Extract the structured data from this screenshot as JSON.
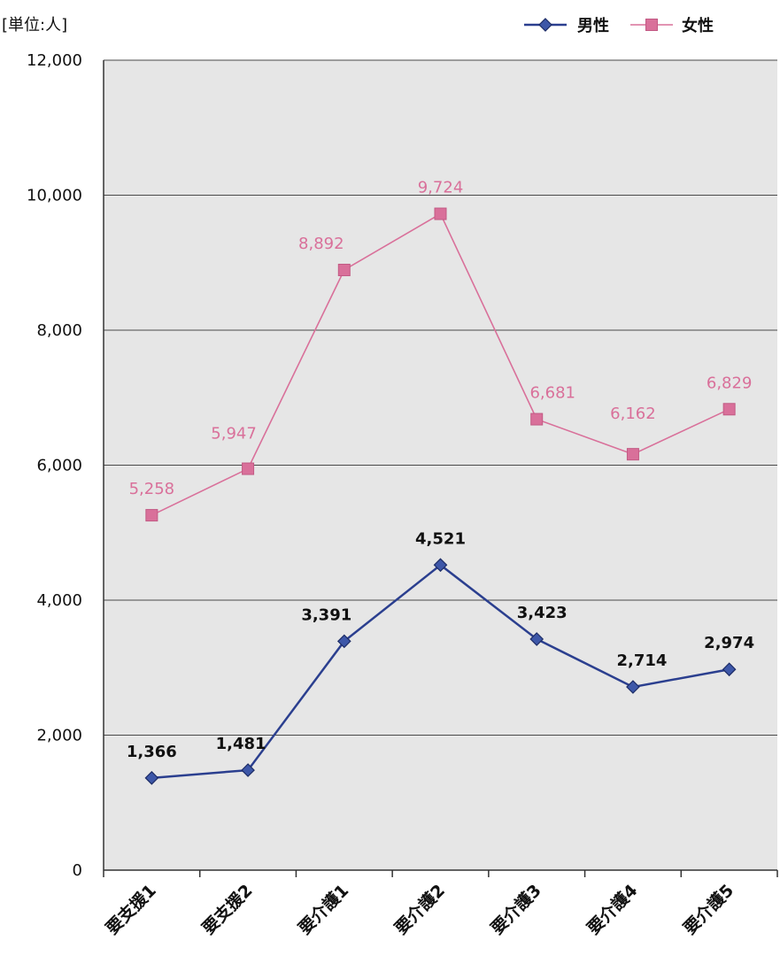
{
  "chart_data": {
    "type": "line",
    "unit_label": "[単位:人]",
    "categories": [
      "要支援1",
      "要支援2",
      "要介護1",
      "要介護2",
      "要介護3",
      "要介護4",
      "要介護5"
    ],
    "series": [
      {
        "name": "男性",
        "values": [
          1366,
          1481,
          3391,
          4521,
          3423,
          2714,
          2974
        ],
        "labels": [
          "1,366",
          "1,481",
          "3,391",
          "4,521",
          "3,423",
          "2,714",
          "2,974"
        ],
        "color": "#2b3f8f",
        "marker": "diamond"
      },
      {
        "name": "女性",
        "values": [
          5258,
          5947,
          8892,
          9724,
          6681,
          6162,
          6829
        ],
        "labels": [
          "5,258",
          "5,947",
          "8,892",
          "9,724",
          "6,681",
          "6,162",
          "6,829"
        ],
        "color": "#d9709a",
        "marker": "square"
      }
    ],
    "ylim": [
      0,
      12000
    ],
    "yticks": [
      0,
      2000,
      4000,
      6000,
      8000,
      10000,
      12000
    ],
    "ytick_labels": [
      "0",
      "2,000",
      "4,000",
      "6,000",
      "8,000",
      "10,000",
      "12,000"
    ],
    "plot_background": "#e6e6e6",
    "grid": true,
    "legend_position": "top-right"
  }
}
